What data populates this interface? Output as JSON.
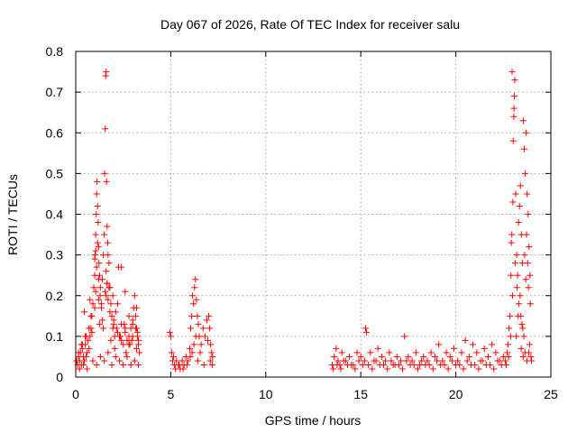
{
  "chart_data": {
    "type": "scatter",
    "title": "Day 067 of 2026, Rate Of TEC Index for receiver salu",
    "xlabel": "GPS time / hours",
    "ylabel": "ROTI / TECUs",
    "xlim": [
      0,
      25
    ],
    "ylim": [
      0,
      0.8
    ],
    "xticks": [
      "0",
      "5",
      "10",
      "15",
      "20",
      "25"
    ],
    "yticks": [
      "0",
      "0.1",
      "0.2",
      "0.3",
      "0.4",
      "0.5",
      "0.6",
      "0.7",
      "0.8"
    ],
    "grid": true,
    "marker": "plus",
    "color": "#ff0000",
    "series": [
      {
        "x": [
          0.05,
          0.1,
          0.15,
          0.2,
          0.25,
          0.3,
          0.35,
          0.4,
          0.45,
          0.5,
          0.55,
          0.6,
          0.65,
          0.7,
          0.75,
          0.8,
          0.85,
          0.9,
          0.95,
          1.0,
          1.02,
          1.05,
          1.08,
          1.1,
          1.12,
          1.15,
          1.18,
          1.2,
          1.22,
          1.25,
          1.28,
          1.3,
          1.35,
          1.4,
          1.45,
          1.5,
          1.52,
          1.55,
          1.58,
          1.6,
          1.62,
          1.65,
          1.68,
          1.7,
          1.75,
          1.8,
          1.85,
          1.9,
          1.95,
          2.0,
          2.05,
          2.1,
          2.15,
          2.2,
          2.3,
          2.4,
          2.5,
          2.6,
          2.7,
          2.8,
          2.9,
          3.0,
          3.05,
          3.1,
          3.15,
          3.2,
          3.25,
          3.3,
          3.35,
          0.2,
          0.4,
          0.6,
          0.9,
          1.1,
          1.3,
          1.5,
          1.7,
          1.9,
          2.1,
          2.3,
          2.5,
          2.7,
          2.9,
          3.1,
          3.3,
          0.3,
          0.5,
          0.7,
          0.8,
          1.0,
          1.2,
          1.4,
          1.6,
          1.8,
          2.0,
          2.2,
          2.4,
          2.6,
          2.8,
          3.0,
          3.2,
          0.45,
          0.75,
          1.05,
          1.35,
          1.65,
          1.95,
          2.25,
          2.55,
          2.85,
          3.15,
          1.0,
          1.05,
          1.1,
          1.15,
          1.2,
          1.55,
          1.6,
          1.65,
          1.7,
          1.75,
          2.4,
          2.6,
          2.8,
          3.0,
          3.2,
          3.3,
          0.15,
          0.35,
          0.55,
          0.85,
          1.25,
          1.45,
          1.85,
          2.05,
          2.35,
          2.65,
          2.95,
          3.25
        ],
        "y": [
          0.04,
          0.03,
          0.05,
          0.04,
          0.06,
          0.03,
          0.07,
          0.05,
          0.04,
          0.08,
          0.05,
          0.06,
          0.09,
          0.07,
          0.1,
          0.12,
          0.15,
          0.18,
          0.22,
          0.25,
          0.3,
          0.35,
          0.4,
          0.45,
          0.48,
          0.42,
          0.38,
          0.32,
          0.28,
          0.25,
          0.2,
          0.22,
          0.18,
          0.24,
          0.3,
          0.35,
          0.5,
          0.61,
          0.74,
          0.75,
          0.48,
          0.37,
          0.33,
          0.3,
          0.28,
          0.22,
          0.18,
          0.15,
          0.12,
          0.14,
          0.1,
          0.16,
          0.12,
          0.18,
          0.1,
          0.13,
          0.08,
          0.11,
          0.09,
          0.1,
          0.12,
          0.14,
          0.17,
          0.2,
          0.15,
          0.12,
          0.1,
          0.08,
          0.06,
          0.02,
          0.03,
          0.02,
          0.04,
          0.03,
          0.05,
          0.04,
          0.06,
          0.03,
          0.05,
          0.04,
          0.03,
          0.05,
          0.03,
          0.04,
          0.03,
          0.08,
          0.1,
          0.12,
          0.15,
          0.17,
          0.19,
          0.14,
          0.2,
          0.16,
          0.13,
          0.11,
          0.09,
          0.12,
          0.08,
          0.1,
          0.07,
          0.16,
          0.19,
          0.21,
          0.17,
          0.23,
          0.2,
          0.27,
          0.13,
          0.08,
          0.12,
          0.29,
          0.31,
          0.27,
          0.33,
          0.24,
          0.21,
          0.26,
          0.23,
          0.19,
          0.22,
          0.27,
          0.21,
          0.15,
          0.13,
          0.17,
          0.09,
          0.06,
          0.08,
          0.1,
          0.11,
          0.13,
          0.12,
          0.09,
          0.07,
          0.1,
          0.06,
          0.09,
          0.11
        ]
      },
      {
        "x": [
          4.95,
          5.0,
          5.05,
          5.1,
          5.15,
          5.2,
          5.3,
          5.4,
          5.5,
          5.6,
          5.7,
          5.8,
          5.9,
          6.0,
          6.05,
          6.1,
          6.15,
          6.2,
          6.25,
          6.3,
          6.35,
          6.4,
          6.45,
          6.5,
          6.6,
          6.7,
          6.8,
          6.9,
          7.0,
          7.05,
          7.1,
          7.15,
          7.2,
          5.25,
          5.45,
          5.65,
          5.85,
          6.02,
          6.12,
          6.22,
          6.32,
          6.42,
          6.55,
          6.75,
          6.95,
          7.08,
          7.18
        ],
        "y": [
          0.11,
          0.1,
          0.06,
          0.04,
          0.05,
          0.03,
          0.04,
          0.03,
          0.02,
          0.04,
          0.03,
          0.05,
          0.04,
          0.07,
          0.12,
          0.15,
          0.2,
          0.18,
          0.22,
          0.24,
          0.19,
          0.15,
          0.13,
          0.1,
          0.08,
          0.12,
          0.1,
          0.14,
          0.15,
          0.12,
          0.08,
          0.06,
          0.05,
          0.02,
          0.03,
          0.02,
          0.03,
          0.05,
          0.06,
          0.08,
          0.1,
          0.04,
          0.06,
          0.03,
          0.09,
          0.04,
          0.03
        ]
      },
      {
        "x": [
          13.5,
          13.6,
          13.7,
          13.8,
          13.9,
          14.0,
          14.2,
          14.4,
          14.6,
          14.8,
          15.0,
          15.2,
          15.25,
          15.3,
          15.5,
          15.7,
          15.9,
          16.1,
          16.3,
          16.5,
          16.7,
          16.9,
          17.1,
          17.3,
          17.5,
          17.7,
          17.9,
          18.1,
          18.3,
          18.5,
          18.7,
          18.9,
          19.1,
          19.3,
          19.5,
          19.7,
          19.9,
          20.1,
          20.3,
          20.5,
          20.7,
          20.9,
          21.1,
          21.3,
          21.5,
          21.7,
          21.9,
          22.1,
          22.3,
          22.5,
          13.55,
          13.75,
          13.95,
          14.3,
          14.7,
          15.1,
          15.6,
          16.0,
          16.4,
          16.8,
          17.2,
          17.6,
          18.0,
          18.4,
          18.8,
          19.2,
          19.6,
          20.0,
          20.4,
          20.8,
          21.2,
          21.6,
          22.0,
          22.4,
          14.1,
          14.5,
          14.9,
          15.4,
          15.8,
          16.2,
          16.6,
          17.0,
          17.4,
          17.8,
          18.2,
          18.6,
          19.0,
          19.4,
          19.8,
          20.2,
          20.6,
          21.0,
          21.4,
          21.8,
          22.2
        ],
        "y": [
          0.03,
          0.05,
          0.07,
          0.04,
          0.03,
          0.06,
          0.04,
          0.05,
          0.03,
          0.06,
          0.05,
          0.04,
          0.12,
          0.11,
          0.06,
          0.04,
          0.07,
          0.05,
          0.04,
          0.06,
          0.03,
          0.05,
          0.04,
          0.1,
          0.05,
          0.04,
          0.06,
          0.03,
          0.05,
          0.04,
          0.06,
          0.05,
          0.08,
          0.04,
          0.06,
          0.05,
          0.07,
          0.04,
          0.06,
          0.09,
          0.05,
          0.08,
          0.06,
          0.04,
          0.07,
          0.05,
          0.08,
          0.06,
          0.04,
          0.05,
          0.02,
          0.03,
          0.02,
          0.03,
          0.02,
          0.03,
          0.02,
          0.03,
          0.02,
          0.03,
          0.02,
          0.03,
          0.02,
          0.03,
          0.02,
          0.03,
          0.02,
          0.03,
          0.02,
          0.03,
          0.02,
          0.03,
          0.02,
          0.03,
          0.04,
          0.03,
          0.04,
          0.03,
          0.04,
          0.03,
          0.04,
          0.03,
          0.04,
          0.03,
          0.04,
          0.03,
          0.04,
          0.03,
          0.04,
          0.03,
          0.04,
          0.03,
          0.04,
          0.03,
          0.04
        ]
      },
      {
        "x": [
          22.6,
          22.7,
          22.75,
          22.8,
          22.85,
          22.9,
          22.95,
          23.0,
          23.02,
          23.05,
          23.08,
          23.1,
          23.15,
          23.2,
          23.25,
          23.3,
          23.35,
          23.4,
          23.45,
          23.5,
          23.55,
          23.6,
          23.65,
          23.7,
          23.75,
          23.8,
          23.85,
          23.9,
          23.95,
          22.65,
          22.78,
          22.88,
          22.98,
          23.12,
          23.22,
          23.32,
          23.42,
          23.52,
          23.62,
          23.72,
          23.82,
          23.92,
          22.92,
          22.96,
          23.06,
          23.18,
          23.28,
          23.38,
          23.48,
          23.58,
          23.68,
          23.78,
          23.88,
          23.98,
          23.44,
          23.54,
          23.64,
          23.74,
          23.84
        ],
        "y": [
          0.04,
          0.06,
          0.08,
          0.12,
          0.15,
          0.25,
          0.35,
          0.43,
          0.58,
          0.64,
          0.69,
          0.73,
          0.45,
          0.3,
          0.25,
          0.38,
          0.42,
          0.47,
          0.35,
          0.28,
          0.63,
          0.56,
          0.5,
          0.6,
          0.45,
          0.4,
          0.32,
          0.25,
          0.05,
          0.03,
          0.05,
          0.1,
          0.2,
          0.28,
          0.22,
          0.18,
          0.15,
          0.12,
          0.3,
          0.35,
          0.22,
          0.18,
          0.33,
          0.75,
          0.66,
          0.1,
          0.15,
          0.2,
          0.13,
          0.1,
          0.24,
          0.28,
          0.08,
          0.04,
          0.07,
          0.05,
          0.06,
          0.04,
          0.06
        ]
      }
    ]
  }
}
